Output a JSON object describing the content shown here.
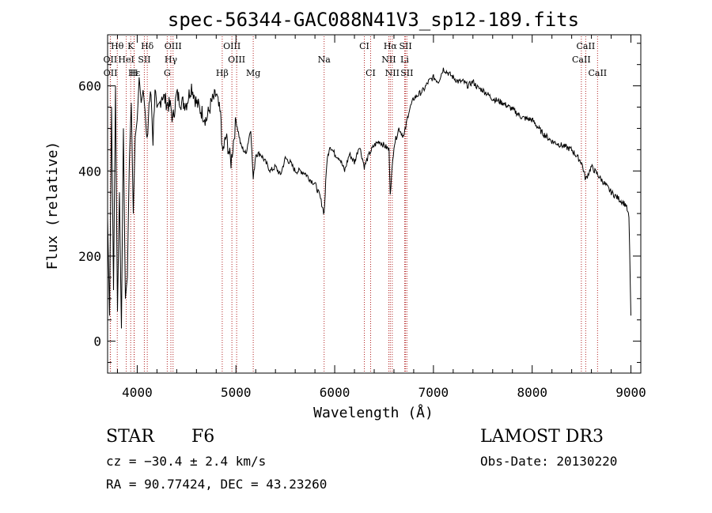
{
  "chart_data": {
    "type": "line",
    "title": "spec-56344-GAC088N41V3_sp12-189.fits",
    "xlabel": "Wavelength (Å)",
    "ylabel": "Flux (relative)",
    "xlim": [
      3700,
      9100
    ],
    "ylim": [
      -75,
      720
    ],
    "xticks": [
      4000,
      5000,
      6000,
      7000,
      8000,
      9000
    ],
    "yticks": [
      0,
      200,
      400,
      600
    ],
    "grid": false,
    "colors": {
      "spectrum": "#000000",
      "line_markers": "#b22222"
    },
    "series": [
      {
        "x": [
          3700,
          3720,
          3740,
          3760,
          3780,
          3800,
          3820,
          3840,
          3860,
          3880,
          3900,
          3920,
          3940,
          3960,
          3980,
          4000,
          4020,
          4040,
          4060,
          4080,
          4100,
          4120,
          4140,
          4160,
          4180,
          4200,
          4250,
          4300,
          4340,
          4360,
          4400,
          4450,
          4500,
          4550,
          4600,
          4650,
          4700,
          4750,
          4800,
          4850,
          4861,
          4900,
          4950,
          5000,
          5050,
          5100,
          5150,
          5175,
          5200,
          5250,
          5300,
          5350,
          5400,
          5450,
          5500,
          5550,
          5600,
          5650,
          5700,
          5750,
          5800,
          5850,
          5893,
          5920,
          5950,
          6000,
          6050,
          6100,
          6150,
          6200,
          6250,
          6300,
          6350,
          6400,
          6450,
          6500,
          6550,
          6563,
          6600,
          6650,
          6700,
          6750,
          6800,
          6850,
          6900,
          6950,
          7000,
          7050,
          7100,
          7150,
          7200,
          7250,
          7300,
          7350,
          7400,
          7450,
          7500,
          7600,
          7700,
          7800,
          7900,
          8000,
          8100,
          8200,
          8300,
          8400,
          8500,
          8542,
          8600,
          8700,
          8800,
          8850,
          8900,
          8950,
          8980,
          9000
        ],
        "y": [
          290,
          60,
          550,
          120,
          600,
          70,
          350,
          30,
          500,
          100,
          150,
          420,
          560,
          300,
          480,
          520,
          620,
          560,
          590,
          540,
          460,
          560,
          580,
          470,
          600,
          530,
          580,
          560,
          550,
          520,
          580,
          560,
          560,
          600,
          560,
          540,
          520,
          560,
          580,
          520,
          440,
          480,
          420,
          520,
          460,
          440,
          500,
          380,
          440,
          440,
          420,
          400,
          410,
          390,
          430,
          420,
          400,
          400,
          395,
          380,
          370,
          340,
          300,
          420,
          460,
          440,
          430,
          400,
          440,
          420,
          460,
          410,
          440,
          460,
          470,
          460,
          450,
          350,
          460,
          500,
          480,
          540,
          570,
          580,
          590,
          610,
          620,
          610,
          640,
          630,
          620,
          610,
          610,
          600,
          610,
          595,
          590,
          570,
          560,
          545,
          525,
          520,
          490,
          470,
          460,
          450,
          420,
          380,
          410,
          380,
          350,
          340,
          330,
          320,
          290,
          60
        ]
      }
    ],
    "line_labels": [
      {
        "text": "Hθ",
        "wave": 3798
      },
      {
        "text": "K",
        "wave": 3934
      },
      {
        "text": "Hδ",
        "wave": 4102
      },
      {
        "text": "OIII",
        "wave": 4363
      },
      {
        "text": "OIII",
        "wave": 4959
      },
      {
        "text": "CI",
        "wave": 6300
      },
      {
        "text": "Hα",
        "wave": 6563
      },
      {
        "text": "SII",
        "wave": 6717
      },
      {
        "text": "CaII",
        "wave": 8542
      },
      {
        "text": "OII",
        "wave": 3727
      },
      {
        "text": "HeI",
        "wave": 3889
      },
      {
        "text": "SII",
        "wave": 4072
      },
      {
        "text": "Hγ",
        "wave": 4341
      },
      {
        "text": "OIII",
        "wave": 5007
      },
      {
        "text": "Na",
        "wave": 5893
      },
      {
        "text": "NII",
        "wave": 6548
      },
      {
        "text": "Li",
        "wave": 6708
      },
      {
        "text": "CaII",
        "wave": 8498
      },
      {
        "text": "OII",
        "wave": 3729
      },
      {
        "text": "Hε",
        "wave": 3970
      },
      {
        "text": "H",
        "wave": 3968
      },
      {
        "text": "G",
        "wave": 4304
      },
      {
        "text": "Hβ",
        "wave": 4861
      },
      {
        "text": "Mg",
        "wave": 5175
      },
      {
        "text": "CI",
        "wave": 6364
      },
      {
        "text": "NII",
        "wave": 6583
      },
      {
        "text": "SII",
        "wave": 6731
      },
      {
        "text": "CaII",
        "wave": 8662
      }
    ]
  },
  "info": {
    "object_class": "STAR",
    "subclass": "F6",
    "redshift": "cz = −30.4 ± 2.4 km/s",
    "coords": "RA =  90.77424, DEC =  43.23260",
    "survey": "LAMOST DR3",
    "obs_date": "Obs-Date: 20130220"
  }
}
